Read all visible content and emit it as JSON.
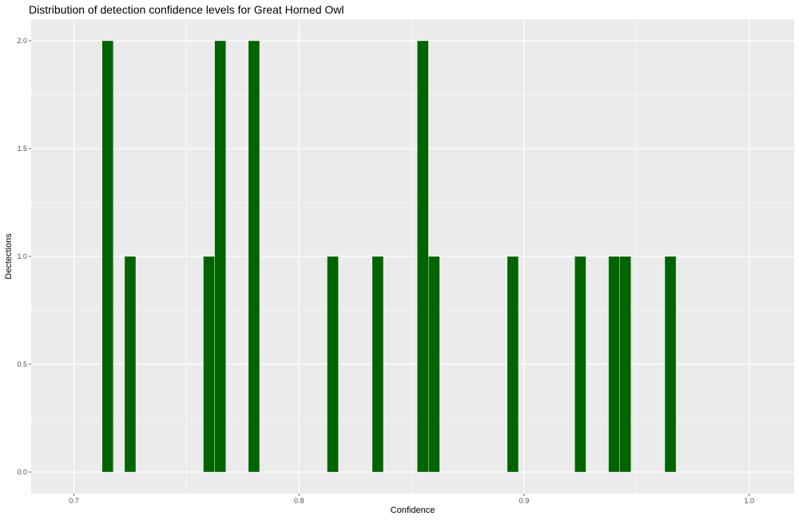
{
  "chart_data": {
    "type": "bar",
    "title": "Distribution of detection confidence levels for Great Horned Owl",
    "xlabel": "Confidence",
    "ylabel": "Dectections",
    "xlim": [
      0.681,
      1.02
    ],
    "ylim": [
      -0.1,
      2.1
    ],
    "x_ticks": [
      "0.7",
      "0.8",
      "0.9",
      "1.0"
    ],
    "y_ticks": [
      "0.0",
      "0.5",
      "1.0",
      "1.5",
      "2.0"
    ],
    "bar_width": 0.005,
    "grid": true,
    "colors": {
      "bar": "#006400",
      "panel": "#ebebeb",
      "grid": "#ffffff"
    },
    "bars": [
      {
        "x": 0.715,
        "y": 2
      },
      {
        "x": 0.725,
        "y": 1
      },
      {
        "x": 0.76,
        "y": 1
      },
      {
        "x": 0.765,
        "y": 2
      },
      {
        "x": 0.78,
        "y": 2
      },
      {
        "x": 0.815,
        "y": 1
      },
      {
        "x": 0.835,
        "y": 1
      },
      {
        "x": 0.855,
        "y": 2
      },
      {
        "x": 0.86,
        "y": 1
      },
      {
        "x": 0.895,
        "y": 1
      },
      {
        "x": 0.925,
        "y": 1
      },
      {
        "x": 0.94,
        "y": 1
      },
      {
        "x": 0.945,
        "y": 1
      },
      {
        "x": 0.965,
        "y": 1
      }
    ]
  }
}
